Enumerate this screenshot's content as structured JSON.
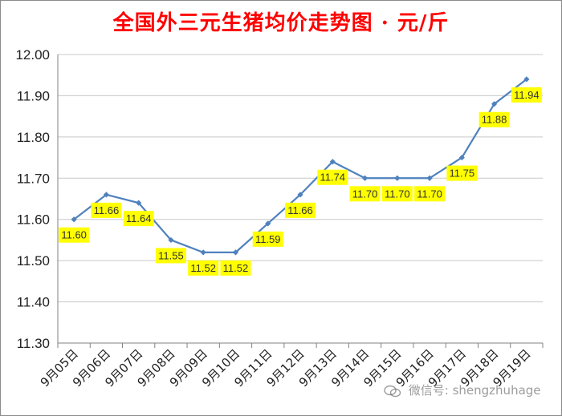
{
  "chart_data": {
    "type": "line",
    "title": "全国外三元生猪均价走势图 · 元/斤",
    "categories": [
      "9月05日",
      "9月06日",
      "9月07日",
      "9月08日",
      "9月09日",
      "9月10日",
      "9月11日",
      "9月12日",
      "9月13日",
      "9月14日",
      "9月15日",
      "9月16日",
      "9月17日",
      "9月18日",
      "9月19日"
    ],
    "series": [
      {
        "values": [
          11.6,
          11.66,
          11.64,
          11.55,
          11.52,
          11.52,
          11.59,
          11.66,
          11.74,
          11.7,
          11.7,
          11.7,
          11.75,
          11.88,
          11.94
        ]
      }
    ],
    "data_labels": [
      "11.60",
      "11.66",
      "11.64",
      "11.55",
      "11.52",
      "11.52",
      "11.59",
      "11.66",
      "11.74",
      "11.70",
      "11.70",
      "11.70",
      "11.75",
      "11.88",
      "11.94"
    ],
    "y_ticks": [
      "12.00",
      "11.90",
      "11.80",
      "11.70",
      "11.60",
      "11.50",
      "11.40",
      "11.30"
    ],
    "ylim": [
      11.3,
      12.0
    ],
    "grid": true,
    "line_color": "#4f81bd",
    "label_bg_color": "#ffff00",
    "title_color": "#ff0000",
    "xlabel": "",
    "ylabel": ""
  },
  "watermark": {
    "text": "微信号: shengzhuhage",
    "icon": "wechat-icon"
  }
}
